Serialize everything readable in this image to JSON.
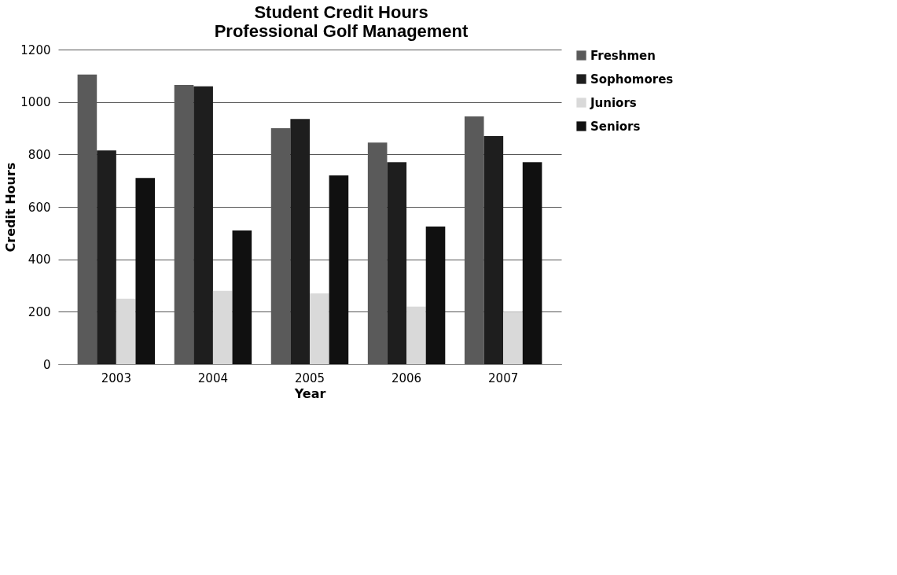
{
  "chart_data": {
    "type": "bar",
    "title": [
      "Student Credit Hours",
      "Professional Golf Management"
    ],
    "xlabel": "Year",
    "ylabel": "Credit Hours",
    "categories": [
      "2003",
      "2004",
      "2005",
      "2006",
      "2007"
    ],
    "series": [
      {
        "name": "Freshmen",
        "color": "#5a5a5a",
        "values": [
          1105,
          1065,
          900,
          845,
          945
        ]
      },
      {
        "name": "Sophomores",
        "color": "#1e1e1e",
        "values": [
          815,
          1060,
          935,
          770,
          870
        ]
      },
      {
        "name": "Juniors",
        "color": "#d9d9d9",
        "values": [
          250,
          280,
          270,
          220,
          200
        ]
      },
      {
        "name": "Seniors",
        "color": "#101010",
        "values": [
          710,
          510,
          720,
          525,
          770
        ]
      }
    ],
    "ylim": [
      0,
      1200
    ],
    "yticks": [
      0,
      200,
      400,
      600,
      800,
      1000,
      1200
    ],
    "grid": "y",
    "legend": "right"
  }
}
